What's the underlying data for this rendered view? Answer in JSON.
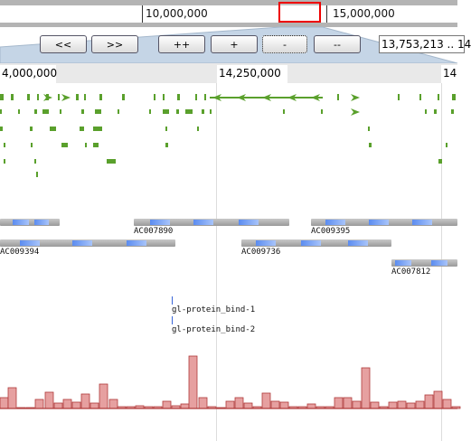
{
  "overview": {
    "labels": [
      "10,000,000",
      "15,000,000"
    ],
    "viewport_box": "current-view-indicator"
  },
  "navigation": {
    "buttons": [
      {
        "id": "pan-left-far",
        "label": "<<"
      },
      {
        "id": "pan-right-far",
        "label": ">>"
      },
      {
        "id": "zoom-in-more",
        "label": "++"
      },
      {
        "id": "zoom-in",
        "label": "+"
      },
      {
        "id": "zoom-out",
        "label": "-"
      },
      {
        "id": "zoom-out-more",
        "label": "--"
      }
    ],
    "location_value": "13,753,213 .. 14"
  },
  "ruler": {
    "labels": [
      "4,000,000",
      "14,250,000",
      "14"
    ]
  },
  "tracks": {
    "clones": [
      "AC007890",
      "AC009395",
      "AC009394",
      "AC009736",
      "AC007812"
    ],
    "motifs": [
      "gl-protein_bind-1",
      "gl-protein_bind-2"
    ]
  },
  "colors": {
    "gene_green": "#5aa02c",
    "clone_blue": "#6a98f0",
    "histogram_fill": "#e6a0a0",
    "histogram_stroke": "#b03a3a",
    "selection_red": "#e00000"
  }
}
